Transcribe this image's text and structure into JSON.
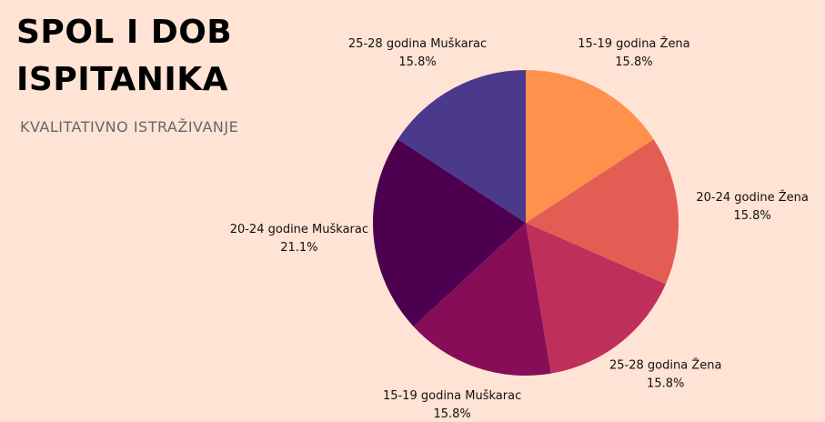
{
  "chart_data": {
    "type": "pie",
    "title": "SPOL I DOB ISPITANIKA",
    "subtitle": "KVALITATIVNO ISTRAŽIVANJE",
    "categories": [
      "15-19 godina Žena",
      "20-24 godine Žena",
      "25-28 godina Žena",
      "15-19 godina Muškarac",
      "20-24 godine Muškarac",
      "25-28 godina Muškarac"
    ],
    "values": [
      15.8,
      15.8,
      15.8,
      15.8,
      21.1,
      15.8
    ],
    "value_labels": [
      "15.8%",
      "15.8%",
      "15.8%",
      "15.8%",
      "21.1%",
      "15.8%"
    ],
    "colors": [
      "#FF914D",
      "#E35D55",
      "#BF2F5C",
      "#870D59",
      "#4D0050",
      "#4B3A8B"
    ]
  }
}
